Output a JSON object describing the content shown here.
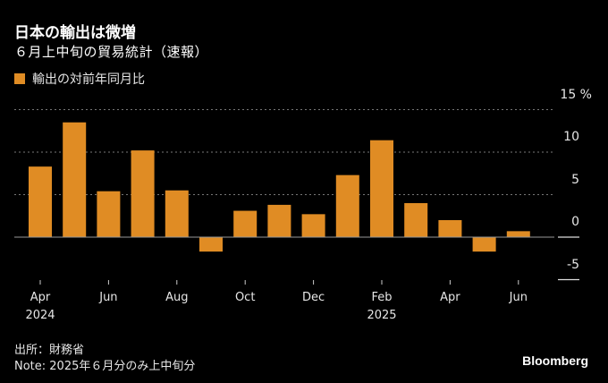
{
  "header": {
    "title": "日本の輸出は微増",
    "subtitle": "６月上中旬の貿易統計（速報）"
  },
  "legend": {
    "label": "輸出の対前年同月比",
    "color": "#e08c24"
  },
  "footer": {
    "source": "出所：財務省",
    "note": "Note: 2025年６月分のみ上中旬分",
    "brand": "Bloomberg"
  },
  "chart_data": {
    "type": "bar",
    "title": "日本の輸出は微増",
    "subtitle": "６月上中旬の貿易統計（速報）",
    "xlabel": "",
    "ylabel": "%",
    "ylim": [
      -5,
      15
    ],
    "yticks": [
      15,
      10,
      5,
      0,
      -5
    ],
    "ytick_labels": [
      "15 %",
      "10",
      "5",
      "0",
      "-5"
    ],
    "grid": true,
    "legend_position": "top-left",
    "categories": [
      "2024-04",
      "2024-05",
      "2024-06",
      "2024-07",
      "2024-08",
      "2024-09",
      "2024-10",
      "2024-11",
      "2024-12",
      "2025-01",
      "2025-02",
      "2025-03",
      "2025-04",
      "2025-05",
      "2025-06"
    ],
    "xtick_labels": [
      {
        "index": 0,
        "label": "Apr",
        "year": "2024"
      },
      {
        "index": 2,
        "label": "Jun",
        "year": ""
      },
      {
        "index": 4,
        "label": "Aug",
        "year": ""
      },
      {
        "index": 6,
        "label": "Oct",
        "year": ""
      },
      {
        "index": 8,
        "label": "Dec",
        "year": ""
      },
      {
        "index": 10,
        "label": "Feb",
        "year": "2025"
      },
      {
        "index": 12,
        "label": "Apr",
        "year": ""
      },
      {
        "index": 14,
        "label": "Jun",
        "year": ""
      }
    ],
    "series": [
      {
        "name": "輸出の対前年同月比",
        "color": "#e08c24",
        "values": [
          8.3,
          13.5,
          5.4,
          10.2,
          5.5,
          -1.7,
          3.1,
          3.8,
          2.7,
          7.3,
          11.4,
          4.0,
          2.0,
          -1.7,
          0.7
        ]
      }
    ]
  }
}
